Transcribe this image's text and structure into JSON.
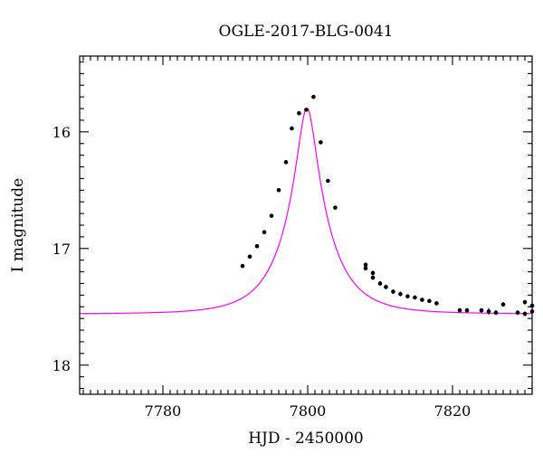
{
  "chart_data": {
    "type": "scatter",
    "title": "OGLE-2017-BLG-0041",
    "xlabel": "HJD - 2450000",
    "ylabel": "I magnitude",
    "xlim": [
      7768.5,
      7831
    ],
    "ylim": [
      18.25,
      15.35
    ],
    "y_inverted": true,
    "x_ticks": [
      7780,
      7800,
      7820
    ],
    "y_ticks": [
      16,
      17,
      18
    ],
    "grid": false,
    "colors": {
      "model": "#ff00ff",
      "points": "#000000"
    },
    "series": [
      {
        "type": "scatter",
        "x": [
          7791.0,
          7792.0,
          7793.0,
          7794.0,
          7795.0,
          7796.0,
          7797.0,
          7797.8,
          7798.8,
          7799.8,
          7800.8,
          7801.8,
          7802.8,
          7803.8,
          7808.0,
          7808.0,
          7809.0,
          7809.0,
          7810.0,
          7810.8,
          7811.8,
          7812.8,
          7813.8,
          7814.8,
          7815.8,
          7816.8,
          7817.8,
          7821.0,
          7822.0,
          7824.0,
          7825.0,
          7826.0,
          7827.0,
          7829.0,
          7830.0,
          7830.0,
          7831.0,
          7831.0
        ],
        "y": [
          17.15,
          17.07,
          16.98,
          16.86,
          16.72,
          16.5,
          16.26,
          15.97,
          15.84,
          15.81,
          15.7,
          16.09,
          16.42,
          16.65,
          17.14,
          17.17,
          17.21,
          17.25,
          17.3,
          17.33,
          17.37,
          17.39,
          17.41,
          17.42,
          17.44,
          17.45,
          17.47,
          17.53,
          17.53,
          17.53,
          17.54,
          17.55,
          17.48,
          17.55,
          17.46,
          17.56,
          17.49,
          17.54
        ],
        "err": [
          0.01,
          0.01,
          0.01,
          0.01,
          0.01,
          0.01,
          0.01,
          0.01,
          0.01,
          0.01,
          0.01,
          0.01,
          0.01,
          0.01,
          0.02,
          0.02,
          0.02,
          0.02,
          0.02,
          0.02,
          0.02,
          0.02,
          0.015,
          0.015,
          0.015,
          0.015,
          0.015,
          0.02,
          0.02,
          0.02,
          0.03,
          0.02,
          0.02,
          0.02,
          0.02,
          0.02,
          0.02,
          0.02
        ]
      },
      {
        "type": "line",
        "model": "pspl",
        "params": {
          "t0": 7799.9,
          "u0": 0.2,
          "tE": 6.0,
          "mbase": 17.56
        }
      }
    ]
  }
}
